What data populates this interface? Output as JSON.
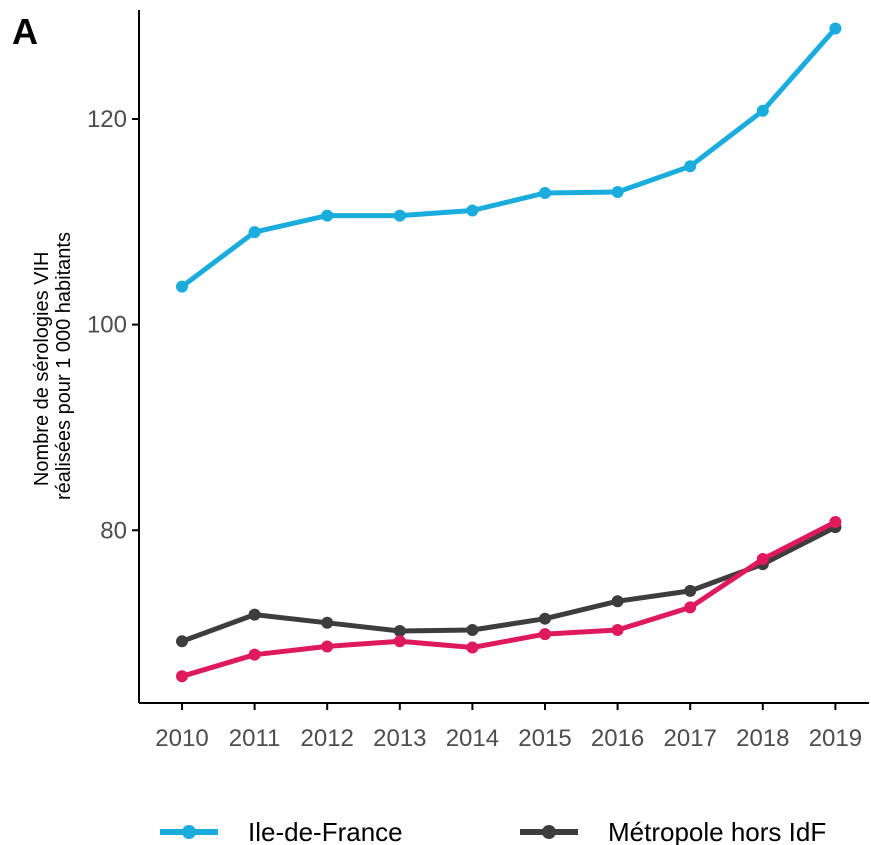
{
  "panel_label": "A",
  "chart_data": {
    "type": "line",
    "title": "",
    "xlabel": "",
    "ylabel_lines": [
      "Nombre de sérologies VIH",
      "réalisées pour 1 000 habitants"
    ],
    "x": [
      2010,
      2011,
      2012,
      2013,
      2014,
      2015,
      2016,
      2017,
      2018,
      2019
    ],
    "x_tick_labels": [
      "2010",
      "2011",
      "2012",
      "2013",
      "2014",
      "2015",
      "2016",
      "2017",
      "2018",
      "2019"
    ],
    "ylim": [
      63.2,
      130.6
    ],
    "y_ticks": [
      80,
      100,
      120
    ],
    "y_tick_labels": [
      "80",
      "100",
      "120"
    ],
    "grid": false,
    "legend_position": "bottom",
    "series": [
      {
        "name": "Ile-de-France",
        "color": "#1BACDE",
        "values": [
          103.7,
          109.0,
          110.6,
          110.6,
          111.1,
          112.8,
          112.9,
          115.4,
          120.8,
          128.8
        ],
        "in_legend": true
      },
      {
        "name": "Métropole hors IdF",
        "color": "#3D3D3D",
        "values": [
          69.2,
          71.8,
          71.0,
          70.2,
          70.3,
          71.4,
          73.1,
          74.1,
          76.7,
          80.3
        ],
        "in_legend": true
      },
      {
        "name": "",
        "color": "#DE1A5C",
        "values": [
          65.8,
          67.9,
          68.7,
          69.2,
          68.6,
          69.9,
          70.3,
          72.5,
          77.2,
          80.8
        ],
        "in_legend": false
      }
    ]
  }
}
